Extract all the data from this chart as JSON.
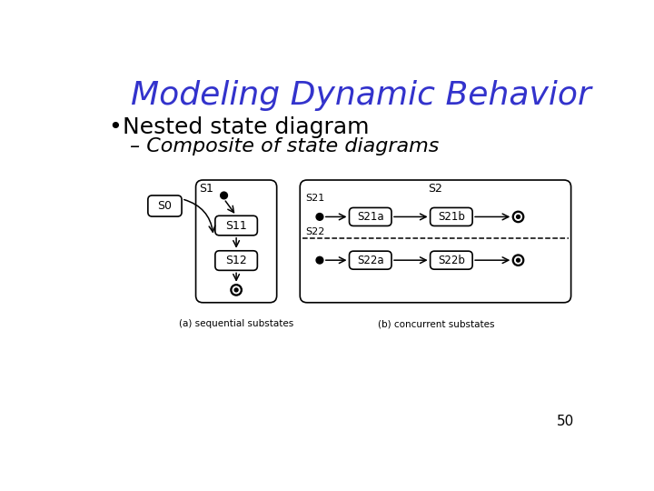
{
  "title": "Modeling Dynamic Behavior",
  "title_color": "#3333CC",
  "title_fontsize": 26,
  "bullet_text": "Nested state diagram",
  "bullet_fontsize": 18,
  "sub_bullet_text": "– Composite of state diagrams",
  "sub_bullet_fontsize": 16,
  "caption_a": "(a) sequential substates",
  "caption_b": "(b) concurrent substates",
  "page_number": "50",
  "bg_color": "#FFFFFF",
  "text_color": "#000000"
}
